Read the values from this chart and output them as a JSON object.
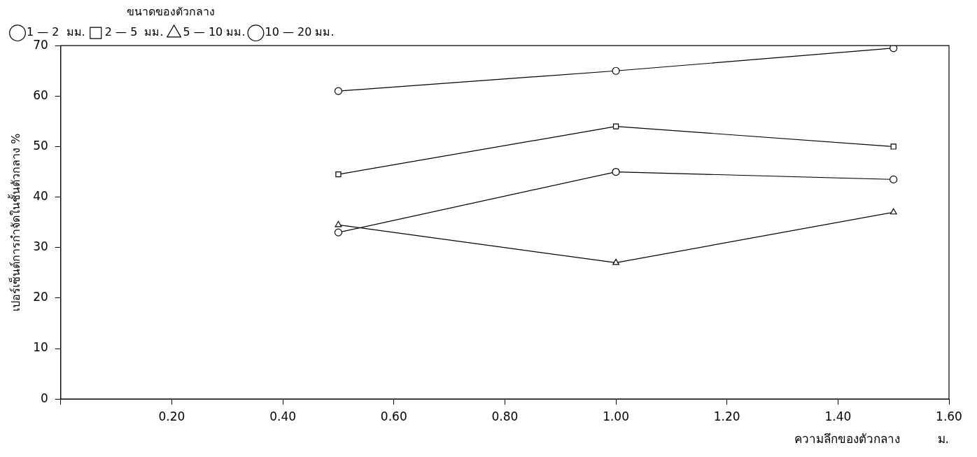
{
  "chart_data": {
    "type": "line",
    "xlabel": "ความลึกของตัวกลาง          ม.",
    "ylabel": "เปอร์เซ็นต์การกำจัดในชั้นตัวกลาง %",
    "legend_title": "ขนาดของตัวกลาง",
    "legend": "top left",
    "grid": false,
    "line_style": "solid",
    "x": [
      0.5,
      1.0,
      1.5
    ],
    "xlim": [
      0,
      1.6
    ],
    "xticks": [
      {
        "value": 0,
        "label": null
      },
      {
        "value": 0.2,
        "label": "0.20"
      },
      {
        "value": 0.4,
        "label": "0.40"
      },
      {
        "value": 0.6,
        "label": "0.60"
      },
      {
        "value": 0.8,
        "label": "0.80"
      },
      {
        "value": 1.0,
        "label": "1.00"
      },
      {
        "value": 1.2,
        "label": "1.20"
      },
      {
        "value": 1.4,
        "label": "1.40"
      },
      {
        "value": 1.6,
        "label": "1.60"
      }
    ],
    "ylim": [
      0,
      70
    ],
    "yticks": [
      0,
      10,
      20,
      30,
      40,
      50,
      60,
      70
    ],
    "series": [
      {
        "name": "1 — 2  มม.",
        "color": "#000000",
        "marker": "circle",
        "values": [
          61,
          65,
          69.5
        ]
      },
      {
        "name": "2 — 5  มม.",
        "color": "#000000",
        "marker": "square",
        "values": [
          44.5,
          54,
          50
        ]
      },
      {
        "name": "5 — 10 มม.",
        "color": "#000000",
        "marker": "triangle",
        "values": [
          34.5,
          27,
          37
        ]
      },
      {
        "name": "10 — 20 มม.",
        "color": "#000000",
        "marker": "circle",
        "values": [
          33,
          45,
          43.5
        ]
      }
    ]
  }
}
